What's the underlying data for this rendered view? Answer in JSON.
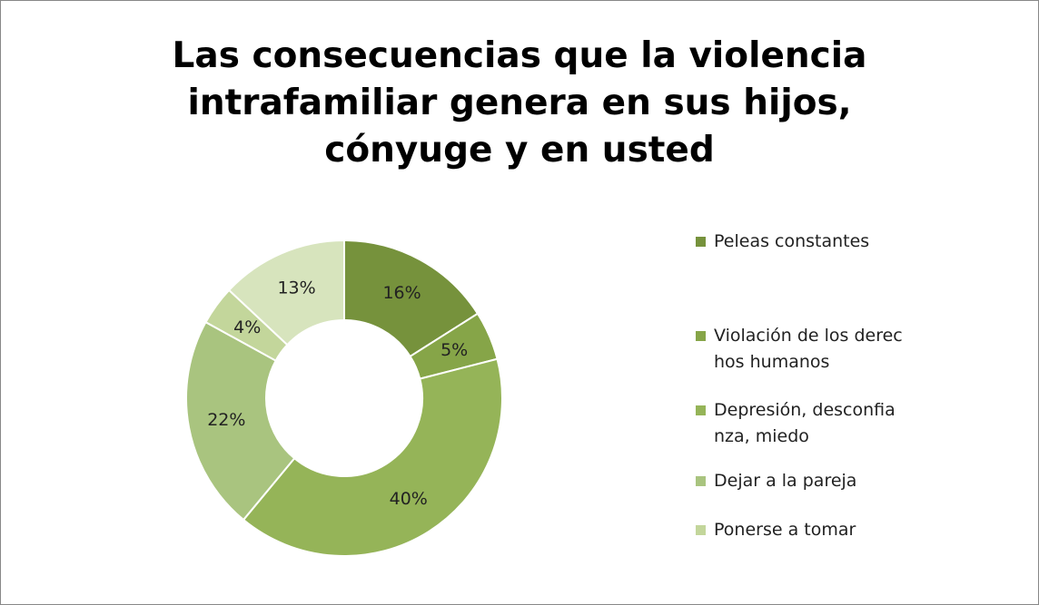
{
  "chart_data": {
    "type": "donut",
    "title": "Las consecuencias que la violencia intrafamiliar genera en sus hijos, cónyuge y en usted",
    "categories": [
      "Peleas constantes",
      "Violación de los derechos humanos",
      "Depresión, desconfianza, miedo",
      "Dejar a la pareja",
      "Ponerse a tomar",
      null
    ],
    "values": [
      16,
      5,
      40,
      22,
      4,
      13
    ],
    "value_labels": [
      "16%",
      "5%",
      "40%",
      "22%",
      "4%",
      "13%"
    ],
    "colors": [
      "#76923c",
      "#86a548",
      "#95b458",
      "#a9c47f",
      "#c3d69b",
      "#d7e4bd"
    ],
    "legend": "right"
  }
}
